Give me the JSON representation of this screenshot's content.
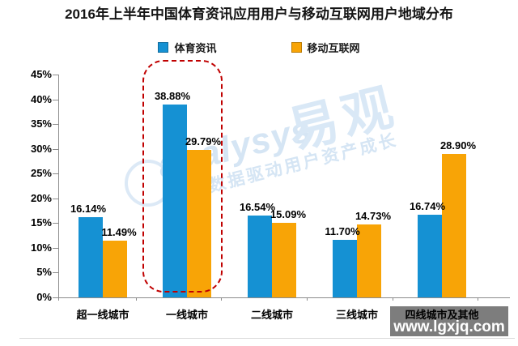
{
  "title": "2016年上半年中国体育资讯应用用户与移动互联网用户地域分布",
  "chart_data": {
    "type": "bar",
    "title": "2016年上半年中国体育资讯应用用户与移动互联网用户地域分布",
    "categories": [
      "超一线城市",
      "一线城市",
      "二线城市",
      "三线城市",
      "四线城市及其他"
    ],
    "series": [
      {
        "name": "体育资讯",
        "color": "#1591d3",
        "values": [
          16.14,
          38.88,
          16.54,
          11.7,
          16.74
        ],
        "labels": [
          "16.14%",
          "38.88%",
          "16.54%",
          "11.70%",
          "16.74%"
        ]
      },
      {
        "name": "移动互联网",
        "color": "#f8a406",
        "values": [
          11.49,
          29.79,
          15.09,
          14.73,
          28.9
        ],
        "labels": [
          "11.49%",
          "29.79%",
          "15.09%",
          "14.73%",
          "28.90%"
        ]
      }
    ],
    "xlabel": "",
    "ylabel": "",
    "ylim": [
      0,
      45
    ],
    "yticks": [
      "0%",
      "5%",
      "10%",
      "15%",
      "20%",
      "25%",
      "30%",
      "35%",
      "40%",
      "45%"
    ],
    "grid": false,
    "legend_position": "top-center",
    "highlight": {
      "category": "一线城市",
      "category_index": 1,
      "style": "red-dashed-rounded-rect",
      "color": "#c00000"
    }
  },
  "watermark": {
    "script_text": "analysys",
    "logo_text": "易观",
    "tagline": "数据驱动用户资产成长"
  },
  "overlay": {
    "site": "www.lgxjq.com"
  }
}
